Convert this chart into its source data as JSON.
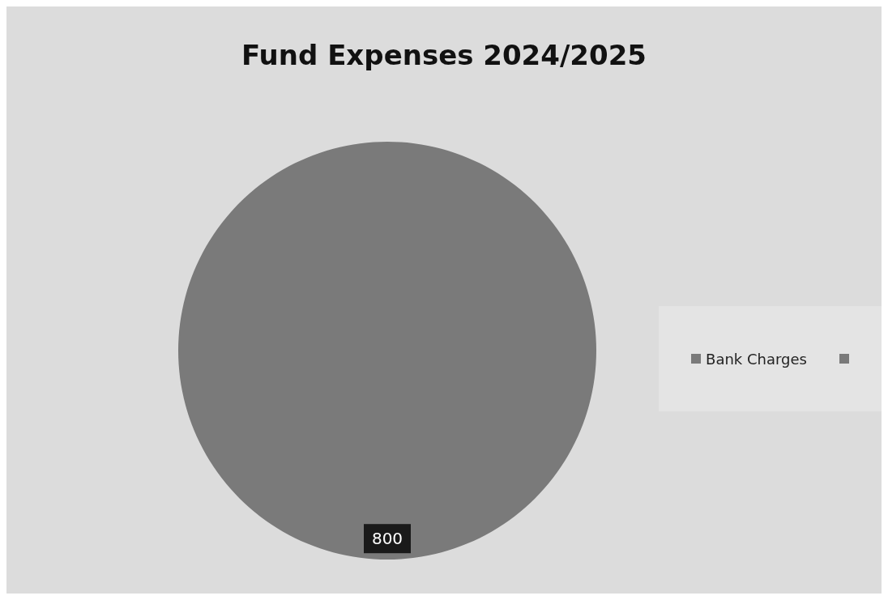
{
  "chart_data": {
    "type": "pie",
    "title": "Fund Expenses 2024/2025",
    "categories": [
      "Bank Charges"
    ],
    "values": [
      800
    ],
    "colors": [
      "#7a7a7a"
    ],
    "data_labels": true,
    "legend": "right"
  }
}
